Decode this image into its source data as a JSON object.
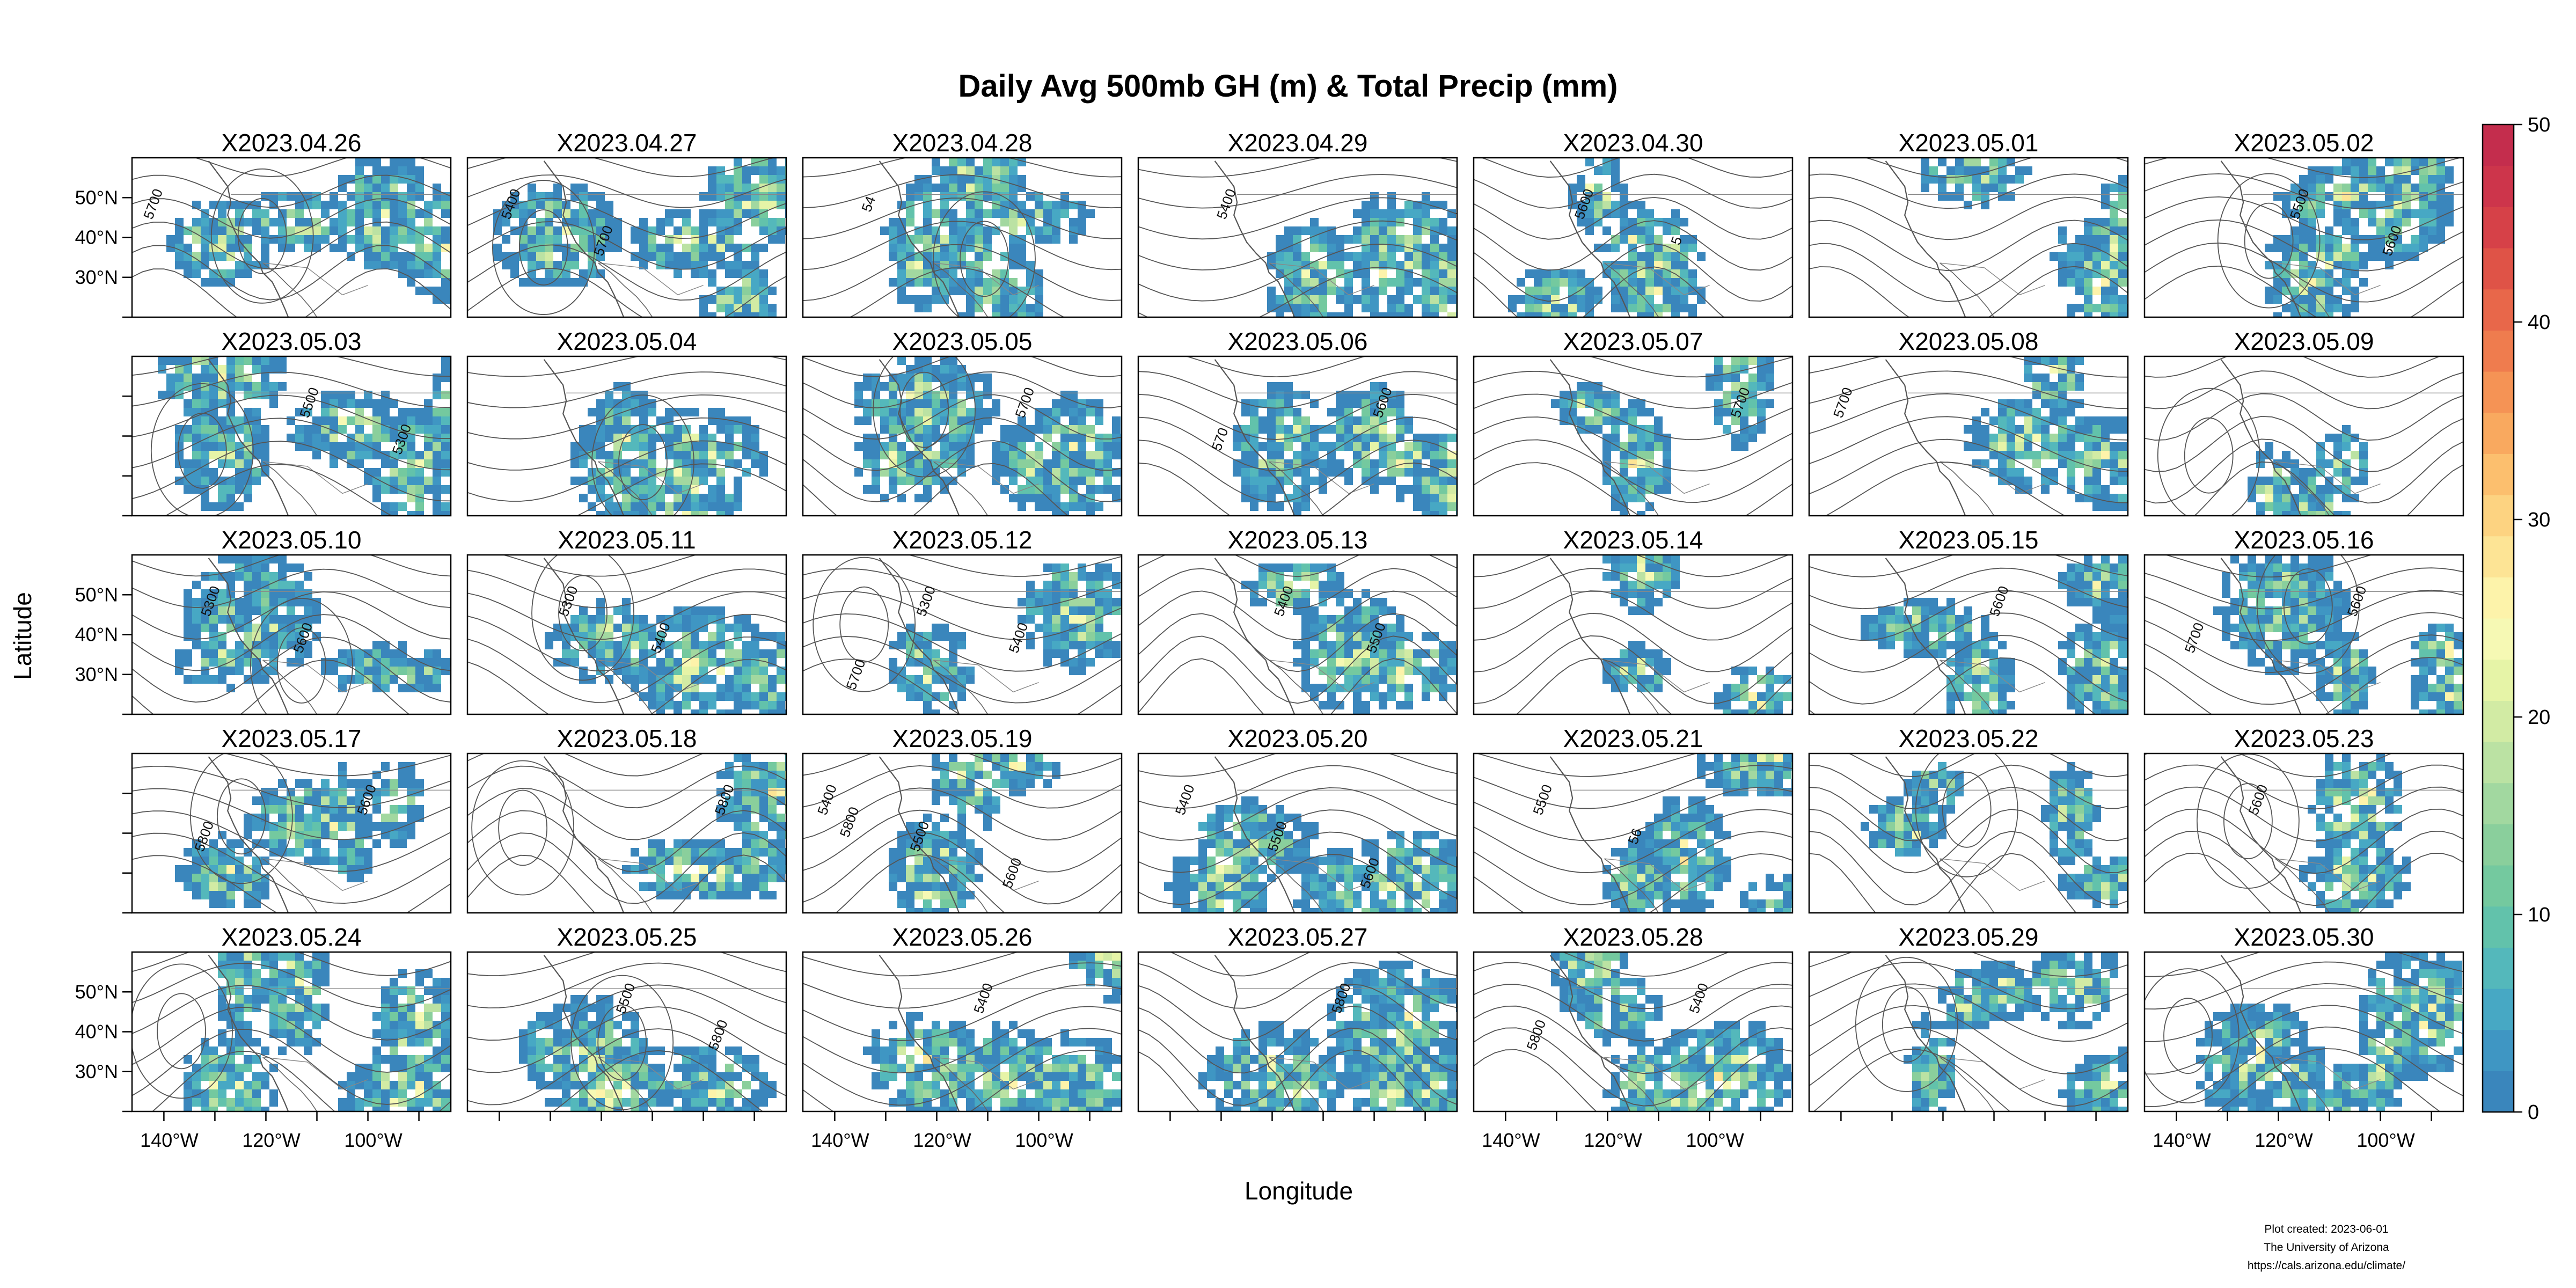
{
  "title": "Daily Avg 500mb GH (m) & Total Precip (mm)",
  "axes": {
    "xlabel": "Longitude",
    "ylabel": "Latitude",
    "lon_ticks": [
      "140°W",
      "120°W",
      "100°W"
    ],
    "lat_ticks": [
      "50°N",
      "40°N",
      "30°N"
    ]
  },
  "colorbar": {
    "ticks": [
      "0",
      "10",
      "20",
      "30",
      "40",
      "50"
    ],
    "range": [
      0,
      50
    ],
    "colors": [
      "#3a86bc",
      "#3f96c3",
      "#47a8c4",
      "#54b8bb",
      "#62c2ab",
      "#74c99f",
      "#8acf9c",
      "#a2d8a0",
      "#bbe2a3",
      "#d2eba4",
      "#e6f4a7",
      "#f6f9b4",
      "#fdf3aa",
      "#fde495",
      "#fdd381",
      "#fcbf6e",
      "#f9a95f",
      "#f59355",
      "#ef7c4e",
      "#e8674a",
      "#df5347",
      "#d64148",
      "#cd354b",
      "#c42d4d"
    ]
  },
  "footer": {
    "created": "Plot created: 2023-06-01",
    "org": "The University of Arizona",
    "url": "https://cals.arizona.edu/climate/"
  },
  "panels": [
    {
      "date": "X2023.04.26",
      "contours": [
        "5700"
      ]
    },
    {
      "date": "X2023.04.27",
      "contours": [
        "5400",
        "5700"
      ]
    },
    {
      "date": "X2023.04.28",
      "contours": [
        "54"
      ]
    },
    {
      "date": "X2023.04.29",
      "contours": [
        "5400"
      ]
    },
    {
      "date": "X2023.04.30",
      "contours": [
        "5600",
        "5"
      ]
    },
    {
      "date": "X2023.05.01",
      "contours": []
    },
    {
      "date": "X2023.05.02",
      "contours": [
        "5500",
        "5600"
      ]
    },
    {
      "date": "X2023.05.03",
      "contours": [
        "5500",
        "5300"
      ]
    },
    {
      "date": "X2023.05.04",
      "contours": []
    },
    {
      "date": "X2023.05.05",
      "contours": [
        "5700"
      ]
    },
    {
      "date": "X2023.05.06",
      "contours": [
        "5600",
        "570"
      ]
    },
    {
      "date": "X2023.05.07",
      "contours": [
        "5700"
      ]
    },
    {
      "date": "X2023.05.08",
      "contours": [
        "5700"
      ]
    },
    {
      "date": "X2023.05.09",
      "contours": []
    },
    {
      "date": "X2023.05.10",
      "contours": [
        "5300",
        "5600"
      ]
    },
    {
      "date": "X2023.05.11",
      "contours": [
        "5300",
        "5400"
      ]
    },
    {
      "date": "X2023.05.12",
      "contours": [
        "5300",
        "5400",
        "5700"
      ]
    },
    {
      "date": "X2023.05.13",
      "contours": [
        "5400",
        "5500"
      ]
    },
    {
      "date": "X2023.05.14",
      "contours": []
    },
    {
      "date": "X2023.05.15",
      "contours": [
        "5600"
      ]
    },
    {
      "date": "X2023.05.16",
      "contours": [
        "5600",
        "5700"
      ]
    },
    {
      "date": "X2023.05.17",
      "contours": [
        "5600",
        "5800"
      ]
    },
    {
      "date": "X2023.05.18",
      "contours": [
        "5800"
      ]
    },
    {
      "date": "X2023.05.19",
      "contours": [
        "5400",
        "5500",
        "5600",
        "5800"
      ]
    },
    {
      "date": "X2023.05.20",
      "contours": [
        "5400",
        "5500",
        "5600"
      ]
    },
    {
      "date": "X2023.05.21",
      "contours": [
        "5500",
        "56"
      ]
    },
    {
      "date": "X2023.05.22",
      "contours": []
    },
    {
      "date": "X2023.05.23",
      "contours": [
        "5600"
      ]
    },
    {
      "date": "X2023.05.24",
      "contours": []
    },
    {
      "date": "X2023.05.25",
      "contours": [
        "5500",
        "5800"
      ]
    },
    {
      "date": "X2023.05.26",
      "contours": [
        "5400"
      ]
    },
    {
      "date": "X2023.05.27",
      "contours": [
        "5800"
      ]
    },
    {
      "date": "X2023.05.28",
      "contours": [
        "5400",
        "5800"
      ]
    },
    {
      "date": "X2023.05.29",
      "contours": []
    },
    {
      "date": "X2023.05.30",
      "contours": []
    }
  ]
}
